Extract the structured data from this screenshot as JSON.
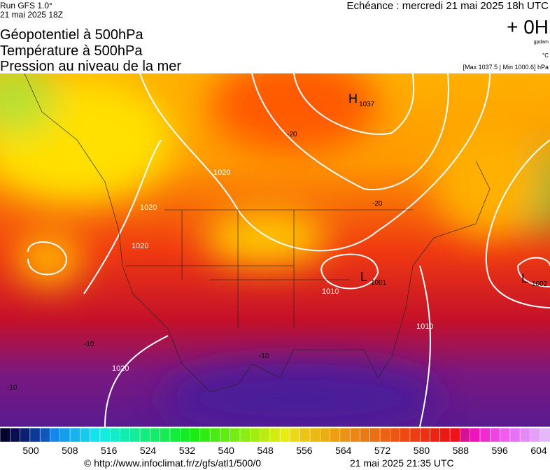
{
  "header": {
    "run": "Run GFS 1.0°",
    "run_date": "21 mai 2025 18Z",
    "forecast": "Echéance : mercredi 21 mai 2025 18h UTC",
    "offset": "+ 0H",
    "unit_geo": "gpdam",
    "unit_temp": "°C",
    "pressure_range": "[Max 1037.5 | Min 1000.6] hPa",
    "titles": [
      "Géopotentiel à 500hPa",
      "Température à 500hPa",
      "Pression au niveau de la mer"
    ]
  },
  "map": {
    "highs": [
      {
        "letter": "H",
        "value": "1037"
      }
    ],
    "lows": [
      {
        "letter": "L",
        "value": "1001"
      },
      {
        "letter": "L",
        "value": "1002"
      }
    ],
    "isobar_labels": [
      "1020",
      "1020",
      "1020",
      "1010",
      "1010",
      "1020"
    ],
    "temperature_labels": [
      "-20",
      "-20",
      "-10",
      "-10",
      "-10"
    ]
  },
  "legend": {
    "labels": [
      500,
      508,
      516,
      524,
      532,
      540,
      548,
      556,
      564,
      572,
      580,
      588,
      596,
      604
    ]
  },
  "footer": {
    "source": "© http://www.infoclimat.fr/z/gfs/atl1/500/0",
    "generated": "21 mai 2025 21:35 UTC"
  }
}
